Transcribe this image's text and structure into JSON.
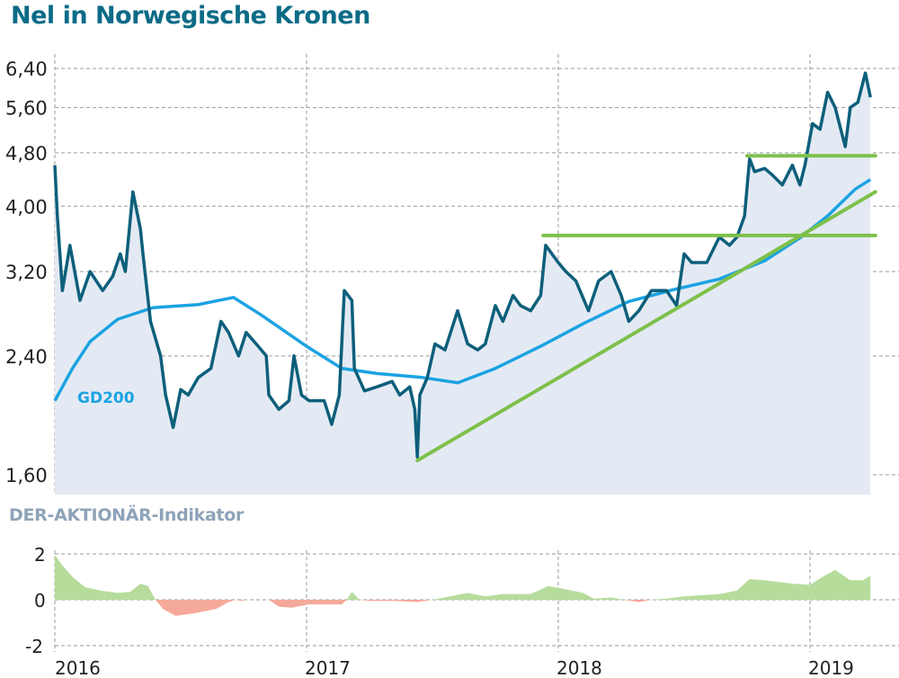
{
  "chart_data": [
    {
      "type": "line",
      "title": "Nel in Norwegische Kronen",
      "ylabel": "",
      "xlabel": "",
      "yscale": "log",
      "ylim": [
        1.5,
        6.9
      ],
      "xlim": [
        2016.0,
        2019.33
      ],
      "yticks": [
        1.6,
        2.4,
        3.2,
        4.0,
        4.8,
        5.6,
        6.4
      ],
      "ytick_labels": [
        "1,60",
        "2,40",
        "3,20",
        "4,00",
        "4,80",
        "5,60",
        "6,40"
      ],
      "xticks": [
        2016,
        2017,
        2018,
        2019
      ],
      "grid": true,
      "colors": {
        "price": "#0d5f7b",
        "gd200": "#1ba3e2",
        "support": "#7dc04b",
        "fill": "#e4eaf4",
        "title": "#0b6b86"
      },
      "series": [
        {
          "key": "price",
          "x": [
            2016.0,
            2016.01,
            2016.03,
            2016.06,
            2016.1,
            2016.14,
            2016.19,
            2016.23,
            2016.26,
            2016.28,
            2016.31,
            2016.34,
            2016.35,
            2016.38,
            2016.42,
            2016.44,
            2016.47,
            2016.5,
            2016.53,
            2016.57,
            2016.62,
            2016.66,
            2016.69,
            2016.73,
            2016.76,
            2016.8,
            2016.84,
            2016.85,
            2016.89,
            2016.93,
            2016.95,
            2016.98,
            2017.01,
            2017.07,
            2017.1,
            2017.13,
            2017.15,
            2017.18,
            2017.19,
            2017.23,
            2017.28,
            2017.34,
            2017.37,
            2017.41,
            2017.43,
            2017.44,
            2017.45,
            2017.48,
            2017.51,
            2017.55,
            2017.6,
            2017.64,
            2017.68,
            2017.71,
            2017.75,
            2017.78,
            2017.82,
            2017.85,
            2017.89,
            2017.93,
            2017.95,
            2018.0,
            2018.03,
            2018.07,
            2018.12,
            2018.16,
            2018.21,
            2018.25,
            2018.28,
            2018.32,
            2018.37,
            2018.43,
            2018.47,
            2018.5,
            2018.53,
            2018.59,
            2018.64,
            2018.68,
            2018.71,
            2018.74,
            2018.76,
            2018.78,
            2018.82,
            2018.85,
            2018.89,
            2018.93,
            2018.96,
            2018.98,
            2019.01,
            2019.04,
            2019.07,
            2019.1,
            2019.14,
            2019.16,
            2019.19,
            2019.22,
            2019.24
          ],
          "y": [
            4.6,
            3.87,
            3.0,
            3.5,
            2.9,
            3.2,
            3.0,
            3.15,
            3.4,
            3.2,
            4.2,
            3.7,
            3.4,
            2.7,
            2.4,
            2.1,
            1.88,
            2.14,
            2.1,
            2.23,
            2.3,
            2.7,
            2.6,
            2.4,
            2.6,
            2.5,
            2.4,
            2.1,
            2.0,
            2.06,
            2.4,
            2.1,
            2.06,
            2.06,
            1.9,
            2.1,
            3.0,
            2.9,
            2.3,
            2.13,
            2.16,
            2.2,
            2.1,
            2.16,
            2.0,
            1.7,
            2.1,
            2.23,
            2.5,
            2.45,
            2.8,
            2.5,
            2.45,
            2.5,
            2.85,
            2.7,
            2.95,
            2.85,
            2.8,
            2.95,
            3.5,
            3.3,
            3.2,
            3.1,
            2.8,
            3.1,
            3.2,
            2.95,
            2.7,
            2.8,
            3.0,
            3.0,
            2.85,
            3.4,
            3.3,
            3.3,
            3.6,
            3.5,
            3.6,
            3.87,
            4.7,
            4.5,
            4.55,
            4.45,
            4.3,
            4.6,
            4.3,
            4.6,
            5.3,
            5.2,
            5.9,
            5.6,
            4.9,
            5.6,
            5.7,
            6.3,
            5.8
          ]
        },
        {
          "key": "gd200",
          "name": "GD200",
          "x": [
            2016.0,
            2016.07,
            2016.14,
            2016.25,
            2016.39,
            2016.57,
            2016.71,
            2016.82,
            2017.0,
            2017.14,
            2017.28,
            2017.46,
            2017.6,
            2017.75,
            2017.93,
            2018.1,
            2018.28,
            2018.46,
            2018.64,
            2018.82,
            2018.96,
            2019.07,
            2019.18,
            2019.24
          ],
          "y": [
            2.06,
            2.3,
            2.52,
            2.72,
            2.83,
            2.86,
            2.93,
            2.76,
            2.48,
            2.3,
            2.26,
            2.23,
            2.19,
            2.3,
            2.48,
            2.68,
            2.89,
            3.01,
            3.12,
            3.32,
            3.59,
            3.87,
            4.24,
            4.38
          ]
        }
      ],
      "support_lines": [
        {
          "x": [
            2017.44,
            2019.26
          ],
          "y": [
            1.68,
            4.2
          ]
        },
        {
          "x": [
            2017.94,
            2019.26
          ],
          "y": [
            3.62,
            3.62
          ]
        },
        {
          "x": [
            2018.75,
            2019.26
          ],
          "y": [
            4.75,
            4.75
          ]
        }
      ]
    },
    {
      "type": "area",
      "title": "DER-AKTIONÄR-Indikator",
      "ylim": [
        -2,
        2
      ],
      "yticks": [
        2,
        0,
        -2
      ],
      "ytick_labels": [
        "2",
        "0",
        "-2"
      ],
      "xticks": [
        2016,
        2017,
        2018,
        2019
      ],
      "xtick_labels": [
        "2016",
        "2017",
        "2018",
        "2019"
      ],
      "grid": true,
      "colors": {
        "positive": "#b6dc9c",
        "negative": "#f5a99a",
        "title": "#8ea3b8"
      },
      "x": [
        2016.0,
        2016.03,
        2016.07,
        2016.12,
        2016.18,
        2016.25,
        2016.3,
        2016.34,
        2016.37,
        2016.4,
        2016.43,
        2016.48,
        2016.55,
        2016.64,
        2016.69,
        2016.72,
        2016.74,
        2016.76,
        2016.85,
        2016.89,
        2016.94,
        2017.01,
        2017.14,
        2017.16,
        2017.18,
        2017.21,
        2017.25,
        2017.35,
        2017.44,
        2017.5,
        2017.57,
        2017.64,
        2017.71,
        2017.78,
        2017.89,
        2017.96,
        2018.01,
        2018.1,
        2018.14,
        2018.21,
        2018.26,
        2018.32,
        2018.37,
        2018.43,
        2018.5,
        2018.64,
        2018.71,
        2018.76,
        2018.82,
        2018.93,
        2019.0,
        2019.05,
        2019.1,
        2019.16,
        2019.21,
        2019.24
      ],
      "y": [
        1.95,
        1.5,
        1.0,
        0.55,
        0.4,
        0.3,
        0.35,
        0.7,
        0.6,
        0,
        -0.4,
        -0.7,
        -0.6,
        -0.4,
        -0.1,
        0,
        -0.05,
        0,
        0,
        -0.3,
        -0.35,
        -0.2,
        -0.2,
        0,
        0.35,
        0,
        -0.05,
        -0.05,
        -0.1,
        0,
        0.15,
        0.3,
        0.15,
        0.25,
        0.25,
        0.6,
        0.5,
        0.3,
        0.05,
        0.1,
        0,
        -0.1,
        0,
        0.05,
        0.15,
        0.25,
        0.4,
        0.9,
        0.85,
        0.7,
        0.65,
        1.0,
        1.3,
        0.85,
        0.85,
        1.05
      ]
    }
  ]
}
